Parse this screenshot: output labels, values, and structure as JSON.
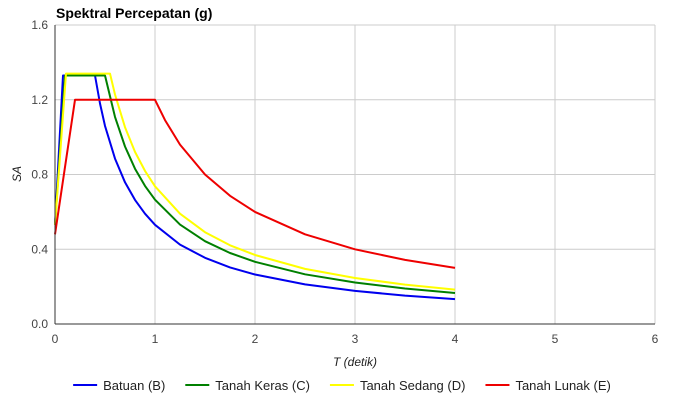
{
  "chart_data": {
    "type": "line",
    "title": "Spektral Percepatan (g)",
    "xlabel": "T (detik)",
    "ylabel": "SA",
    "xlim": [
      0,
      6
    ],
    "ylim": [
      0,
      1.6
    ],
    "x_ticks": [
      "0",
      "1",
      "2",
      "3",
      "4",
      "5",
      "6"
    ],
    "y_ticks": [
      "0.0",
      "0.4",
      "0.8",
      "1.2",
      "1.6"
    ],
    "grid": true,
    "legend_position": "bottom",
    "series": [
      {
        "name": "Batuan (B)",
        "color": "#0000ee",
        "points": [
          [
            0,
            0.53
          ],
          [
            0.08,
            1.33
          ],
          [
            0.4,
            1.33
          ],
          [
            0.45,
            1.18
          ],
          [
            0.5,
            1.06
          ],
          [
            0.6,
            0.885
          ],
          [
            0.7,
            0.758
          ],
          [
            0.8,
            0.664
          ],
          [
            0.9,
            0.59
          ],
          [
            1.0,
            0.531
          ],
          [
            1.25,
            0.425
          ],
          [
            1.5,
            0.354
          ],
          [
            1.75,
            0.303
          ],
          [
            2.0,
            0.265
          ],
          [
            2.5,
            0.212
          ],
          [
            3.0,
            0.177
          ],
          [
            3.5,
            0.152
          ],
          [
            4.0,
            0.133
          ]
        ]
      },
      {
        "name": "Tanah Keras (C)",
        "color": "#008000",
        "points": [
          [
            0,
            0.53
          ],
          [
            0.1,
            1.33
          ],
          [
            0.5,
            1.33
          ],
          [
            0.6,
            1.108
          ],
          [
            0.7,
            0.95
          ],
          [
            0.8,
            0.831
          ],
          [
            0.9,
            0.739
          ],
          [
            1.0,
            0.665
          ],
          [
            1.25,
            0.532
          ],
          [
            1.5,
            0.443
          ],
          [
            1.75,
            0.38
          ],
          [
            2.0,
            0.333
          ],
          [
            2.5,
            0.266
          ],
          [
            3.0,
            0.222
          ],
          [
            3.5,
            0.19
          ],
          [
            4.0,
            0.166
          ]
        ]
      },
      {
        "name": "Tanah Sedang (D)",
        "color": "#ffff00",
        "points": [
          [
            0,
            0.53
          ],
          [
            0.11,
            1.34
          ],
          [
            0.55,
            1.34
          ],
          [
            0.6,
            1.228
          ],
          [
            0.7,
            1.053
          ],
          [
            0.8,
            0.921
          ],
          [
            0.9,
            0.819
          ],
          [
            1.0,
            0.737
          ],
          [
            1.25,
            0.59
          ],
          [
            1.5,
            0.491
          ],
          [
            1.75,
            0.421
          ],
          [
            2.0,
            0.369
          ],
          [
            2.5,
            0.295
          ],
          [
            3.0,
            0.246
          ],
          [
            3.5,
            0.211
          ],
          [
            4.0,
            0.184
          ]
        ]
      },
      {
        "name": "Tanah Lunak (E)",
        "color": "#ee0000",
        "points": [
          [
            0,
            0.48
          ],
          [
            0.2,
            1.2
          ],
          [
            1.0,
            1.2
          ],
          [
            1.1,
            1.091
          ],
          [
            1.25,
            0.96
          ],
          [
            1.5,
            0.8
          ],
          [
            1.75,
            0.686
          ],
          [
            2.0,
            0.6
          ],
          [
            2.5,
            0.48
          ],
          [
            3.0,
            0.4
          ],
          [
            3.5,
            0.343
          ],
          [
            4.0,
            0.3
          ]
        ]
      }
    ]
  }
}
